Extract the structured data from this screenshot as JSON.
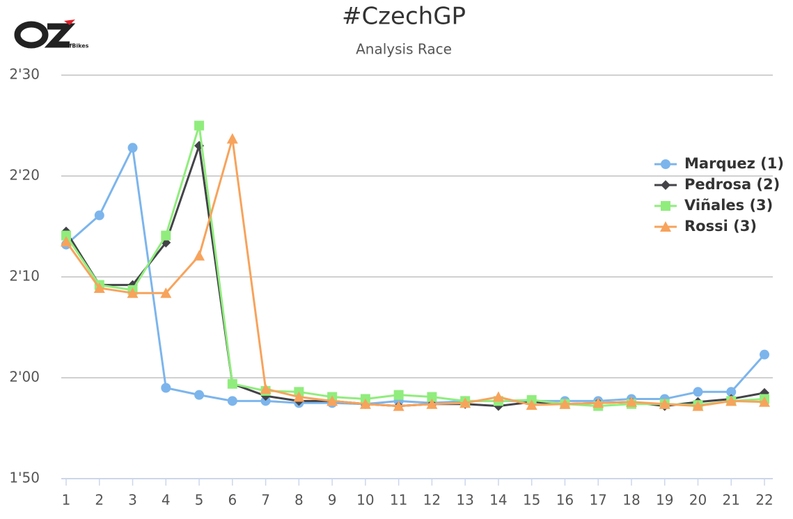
{
  "logo": {
    "text": "OffBikes"
  },
  "chart_data": {
    "type": "line",
    "title": "#CzechGP",
    "subtitle": "Analysis Race",
    "categories": [
      "1",
      "2",
      "3",
      "4",
      "5",
      "6",
      "7",
      "8",
      "9",
      "10",
      "11",
      "12",
      "13",
      "14",
      "15",
      "16",
      "17",
      "18",
      "19",
      "20",
      "21",
      "22"
    ],
    "series": [
      {
        "name": "Marquez (1)",
        "color": "#7cb5ec",
        "marker": "circle",
        "values": [
          133.2,
          136.1,
          142.8,
          119.0,
          118.3,
          117.7,
          117.7,
          117.5,
          117.5,
          117.4,
          117.7,
          117.5,
          117.7,
          117.7,
          117.7,
          117.7,
          117.7,
          117.9,
          117.9,
          118.6,
          118.6,
          122.3
        ]
      },
      {
        "name": "Pedrosa (2)",
        "color": "#434348",
        "marker": "diamond",
        "values": [
          134.5,
          129.2,
          129.2,
          133.4,
          143.0,
          119.4,
          118.2,
          117.7,
          117.7,
          117.4,
          117.2,
          117.4,
          117.4,
          117.2,
          117.6,
          117.4,
          117.5,
          117.6,
          117.2,
          117.6,
          117.9,
          118.5
        ]
      },
      {
        "name": "Viñales (3)",
        "color": "#90ed7d",
        "marker": "square",
        "values": [
          134.1,
          129.2,
          128.7,
          134.1,
          145.0,
          119.4,
          118.7,
          118.6,
          118.1,
          117.9,
          118.3,
          118.1,
          117.7,
          117.7,
          117.8,
          117.4,
          117.2,
          117.4,
          117.4,
          117.3,
          117.7,
          117.9
        ]
      },
      {
        "name": "Rossi (3)",
        "color": "#f7a35c",
        "marker": "triangle",
        "values": [
          133.5,
          128.9,
          128.4,
          128.4,
          132.1,
          143.7,
          118.9,
          118.1,
          117.7,
          117.4,
          117.2,
          117.4,
          117.5,
          118.1,
          117.3,
          117.4,
          117.5,
          117.6,
          117.4,
          117.2,
          117.7,
          117.6
        ]
      }
    ],
    "ylim": [
      110,
      150
    ],
    "yticks": [
      {
        "value": 110,
        "label": "1'50"
      },
      {
        "value": 120,
        "label": "2'00"
      },
      {
        "value": 130,
        "label": "2'10"
      },
      {
        "value": 140,
        "label": "2'20"
      },
      {
        "value": 150,
        "label": "2'30"
      }
    ],
    "grid": true,
    "legend": "right"
  }
}
